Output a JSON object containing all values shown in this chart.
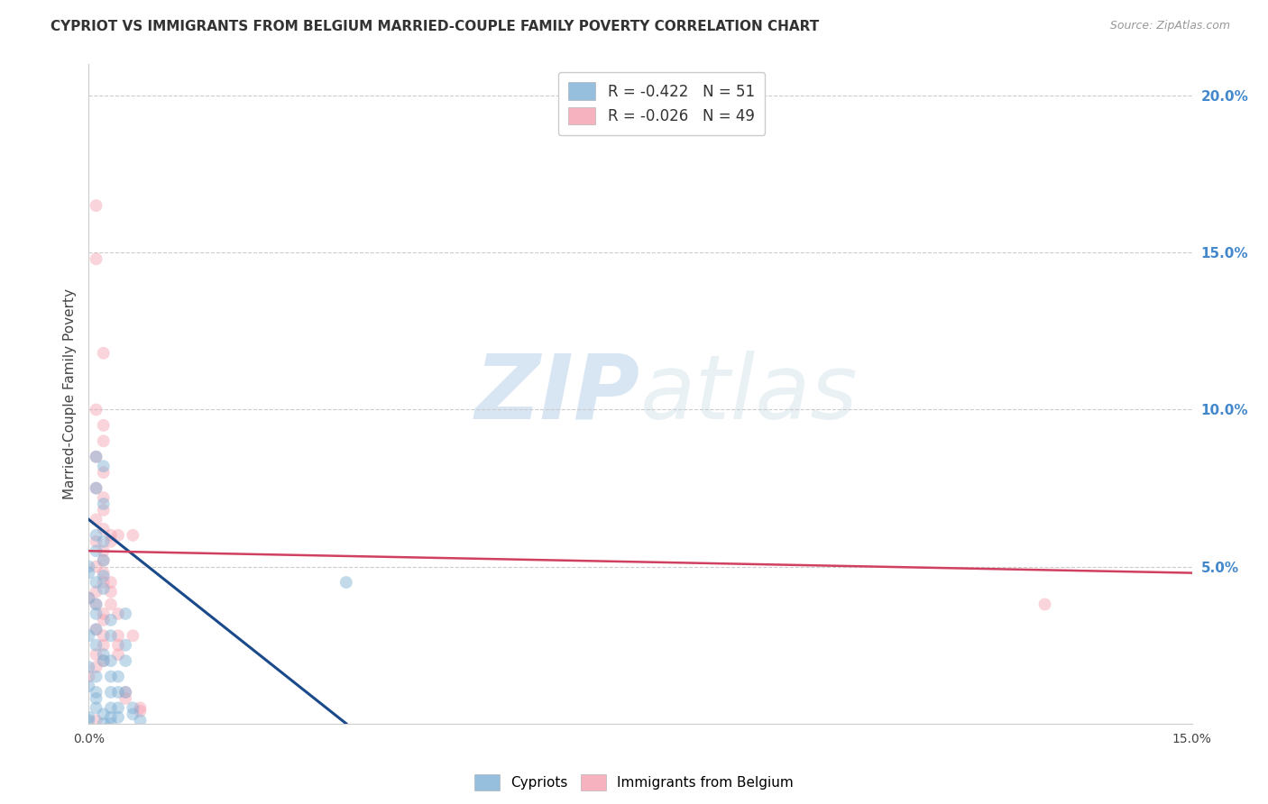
{
  "title": "CYPRIOT VS IMMIGRANTS FROM BELGIUM MARRIED-COUPLE FAMILY POVERTY CORRELATION CHART",
  "source": "Source: ZipAtlas.com",
  "ylabel": "Married-Couple Family Poverty",
  "right_yticks": [
    "20.0%",
    "15.0%",
    "10.0%",
    "5.0%"
  ],
  "right_ytick_vals": [
    0.2,
    0.15,
    0.1,
    0.05
  ],
  "xlim": [
    0.0,
    0.15
  ],
  "ylim": [
    0.0,
    0.21
  ],
  "legend_line1": "R = -0.422   N = 51",
  "legend_line2": "R = -0.026   N = 49",
  "cypriot_scatter": [
    [
      0.001,
      0.085
    ],
    [
      0.002,
      0.082
    ],
    [
      0.001,
      0.075
    ],
    [
      0.002,
      0.07
    ],
    [
      0.0,
      0.05
    ],
    [
      0.001,
      0.055
    ],
    [
      0.0,
      0.048
    ],
    [
      0.002,
      0.052
    ],
    [
      0.001,
      0.045
    ],
    [
      0.002,
      0.047
    ],
    [
      0.0,
      0.04
    ],
    [
      0.001,
      0.038
    ],
    [
      0.001,
      0.06
    ],
    [
      0.002,
      0.058
    ],
    [
      0.001,
      0.035
    ],
    [
      0.001,
      0.03
    ],
    [
      0.0,
      0.028
    ],
    [
      0.001,
      0.025
    ],
    [
      0.002,
      0.022
    ],
    [
      0.002,
      0.02
    ],
    [
      0.0,
      0.018
    ],
    [
      0.001,
      0.015
    ],
    [
      0.0,
      0.012
    ],
    [
      0.001,
      0.01
    ],
    [
      0.001,
      0.008
    ],
    [
      0.001,
      0.005
    ],
    [
      0.002,
      0.003
    ],
    [
      0.0,
      0.002
    ],
    [
      0.0,
      0.001
    ],
    [
      0.002,
      0.0
    ],
    [
      0.002,
      0.043
    ],
    [
      0.003,
      0.033
    ],
    [
      0.003,
      0.028
    ],
    [
      0.003,
      0.02
    ],
    [
      0.003,
      0.015
    ],
    [
      0.003,
      0.01
    ],
    [
      0.003,
      0.005
    ],
    [
      0.003,
      0.002
    ],
    [
      0.003,
      0.0
    ],
    [
      0.004,
      0.015
    ],
    [
      0.004,
      0.01
    ],
    [
      0.004,
      0.005
    ],
    [
      0.004,
      0.002
    ],
    [
      0.005,
      0.035
    ],
    [
      0.005,
      0.025
    ],
    [
      0.005,
      0.02
    ],
    [
      0.005,
      0.01
    ],
    [
      0.006,
      0.005
    ],
    [
      0.006,
      0.003
    ],
    [
      0.007,
      0.001
    ],
    [
      0.035,
      0.045
    ]
  ],
  "belgium_scatter": [
    [
      0.001,
      0.165
    ],
    [
      0.001,
      0.148
    ],
    [
      0.002,
      0.118
    ],
    [
      0.001,
      0.1
    ],
    [
      0.002,
      0.095
    ],
    [
      0.002,
      0.09
    ],
    [
      0.001,
      0.085
    ],
    [
      0.002,
      0.08
    ],
    [
      0.001,
      0.075
    ],
    [
      0.002,
      0.072
    ],
    [
      0.002,
      0.068
    ],
    [
      0.001,
      0.065
    ],
    [
      0.002,
      0.062
    ],
    [
      0.001,
      0.058
    ],
    [
      0.002,
      0.055
    ],
    [
      0.002,
      0.052
    ],
    [
      0.001,
      0.05
    ],
    [
      0.002,
      0.048
    ],
    [
      0.002,
      0.045
    ],
    [
      0.001,
      0.042
    ],
    [
      0.0,
      0.04
    ],
    [
      0.001,
      0.038
    ],
    [
      0.002,
      0.035
    ],
    [
      0.002,
      0.033
    ],
    [
      0.001,
      0.03
    ],
    [
      0.002,
      0.028
    ],
    [
      0.002,
      0.025
    ],
    [
      0.001,
      0.022
    ],
    [
      0.002,
      0.02
    ],
    [
      0.001,
      0.018
    ],
    [
      0.0,
      0.015
    ],
    [
      0.003,
      0.06
    ],
    [
      0.003,
      0.058
    ],
    [
      0.003,
      0.045
    ],
    [
      0.003,
      0.042
    ],
    [
      0.003,
      0.038
    ],
    [
      0.004,
      0.035
    ],
    [
      0.004,
      0.028
    ],
    [
      0.004,
      0.025
    ],
    [
      0.004,
      0.022
    ],
    [
      0.004,
      0.06
    ],
    [
      0.005,
      0.01
    ],
    [
      0.005,
      0.008
    ],
    [
      0.006,
      0.06
    ],
    [
      0.006,
      0.028
    ],
    [
      0.007,
      0.005
    ],
    [
      0.007,
      0.004
    ],
    [
      0.13,
      0.038
    ],
    [
      0.001,
      0.001
    ]
  ],
  "cypriot_line": {
    "x": [
      0.0,
      0.035
    ],
    "y": [
      0.065,
      0.0
    ]
  },
  "belgium_line": {
    "x": [
      0.0,
      0.15
    ],
    "y": [
      0.055,
      0.048
    ]
  },
  "cypriot_color": "#7bafd4",
  "belgium_color": "#f4a0b0",
  "cypriot_line_color": "#1a4a8a",
  "belgium_line_color": "#d04060",
  "background_color": "#ffffff",
  "marker_size": 100,
  "marker_alpha": 0.45
}
